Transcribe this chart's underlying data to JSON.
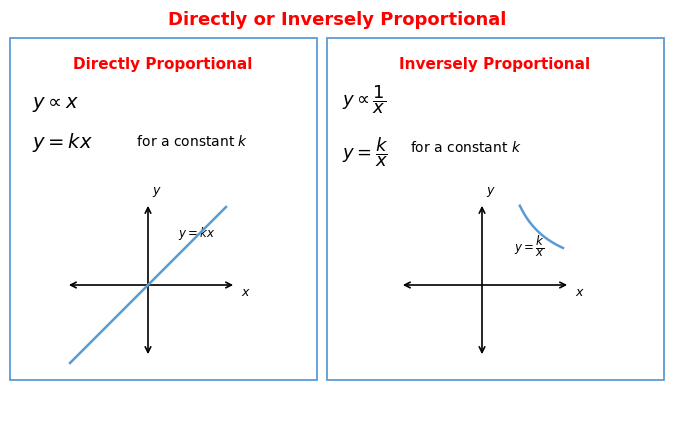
{
  "title": "Directly or Inversely Proportional",
  "title_color": "#FF0000",
  "title_fontsize": 13,
  "box_color": "#5B9BD5",
  "background_color": "#FFFFFF",
  "left_header": "Directly Proportional",
  "right_header": "Inversely Proportional",
  "header_color": "#FF0000",
  "header_fontsize": 11,
  "curve_color": "#5B9BD5",
  "arrow_color": "#000000",
  "fig_width": 6.74,
  "fig_height": 4.3,
  "dpi": 100
}
